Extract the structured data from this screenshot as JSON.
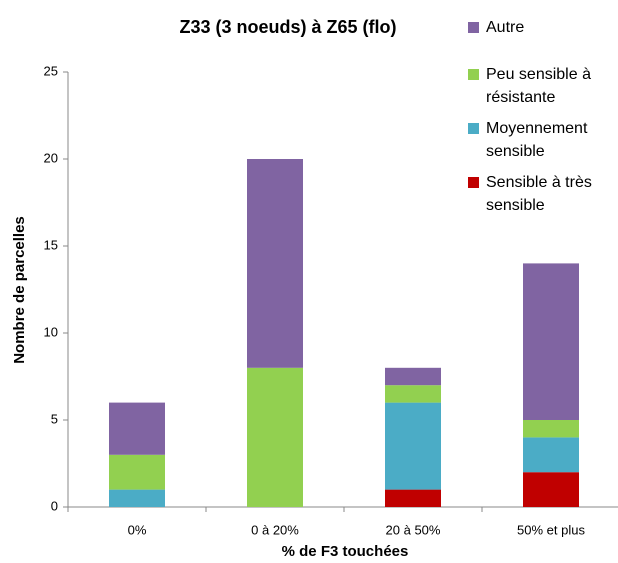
{
  "chart_data": {
    "type": "stacked_bar",
    "title": "Z33 (3 noeuds) à Z65 (flo)",
    "x_label": "% de F3 touchées",
    "y_label": "Nombre de parcelles",
    "categories": [
      "0%",
      "0 à 20%",
      "20 à 50%",
      "50% et plus"
    ],
    "series": [
      {
        "name": "Sensible à très sensible",
        "color": "#c00000",
        "values": [
          0,
          0,
          1,
          2
        ]
      },
      {
        "name": "Moyennement sensible",
        "color": "#4bacc6",
        "values": [
          1,
          0,
          5,
          2
        ]
      },
      {
        "name": "Peu sensible à résistante",
        "color": "#92d050",
        "values": [
          2,
          8,
          1,
          1
        ]
      },
      {
        "name": "Autre",
        "color": "#8064a2",
        "values": [
          3,
          12,
          1,
          9
        ]
      }
    ],
    "ylim": [
      0,
      25
    ],
    "yticks": [
      0,
      5,
      10,
      15,
      20,
      25
    ],
    "grid": false,
    "legend": "top-right"
  }
}
